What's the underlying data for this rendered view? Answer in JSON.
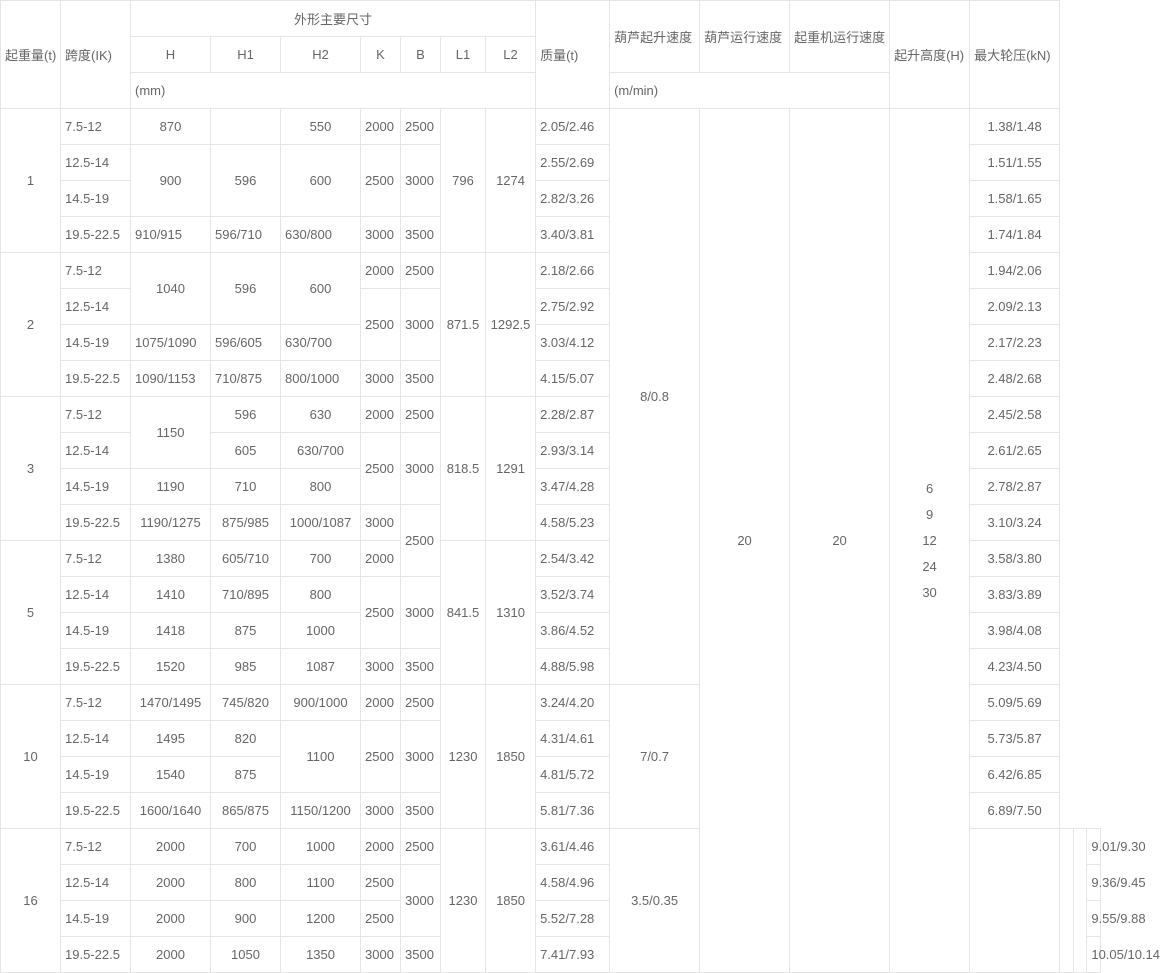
{
  "headers": {
    "capacity": "起重量(t)",
    "span": "跨度(IK)",
    "dims_group": "外形主要尺寸",
    "H": "H",
    "H1": "H1",
    "H2": "H2",
    "K": "K",
    "B": "B",
    "L1": "L1",
    "L2": "L2",
    "mm": "(mm)",
    "mass": "质量(t)",
    "hoist_speed": "葫芦起升速度",
    "trolley_speed": "葫芦运行速度",
    "crane_speed": "起重机运行速度",
    "mmin": "(m/min)",
    "lift_h": "起升高度(H)",
    "wheel_p": "最大轮压(kN)"
  },
  "shared": {
    "hoist_speed_1_5": "8/0.8",
    "hoist_speed_10": "7/0.7",
    "hoist_speed_16": "3.5/0.35",
    "trolley_speed": "20",
    "crane_speed": "20",
    "lift_h_lines": [
      "6",
      "9",
      "12",
      "24",
      "30"
    ]
  },
  "groups": [
    {
      "cap": "1",
      "L1": "796",
      "L2": "1274",
      "rows": [
        {
          "span": "7.5-12",
          "H": "870",
          "H1": "",
          "H2": "550",
          "K": "2000",
          "B": "2500",
          "mass": "2.05/2.46",
          "wp": "1.38/1.48"
        },
        {
          "span": "12.5-14",
          "H": "900",
          "H1": "596",
          "H2": "600",
          "K": "2500",
          "B": "3000",
          "mass": "2.55/2.69",
          "wp": "1.51/1.55"
        },
        {
          "span": "14.5-19",
          "mass": "2.82/3.26",
          "wp": "1.58/1.65"
        },
        {
          "span": "19.5-22.5",
          "H": "910/915",
          "H1": "596/710",
          "H2": "630/800",
          "K": "3000",
          "B": "3500",
          "mass": "3.40/3.81",
          "wp": "1.74/1.84"
        }
      ]
    },
    {
      "cap": "2",
      "L1": "871.5",
      "L2": "1292.5",
      "rows": [
        {
          "span": "7.5-12",
          "H": "1040",
          "H1": "596",
          "H2": "600",
          "K": "2000",
          "B": "2500",
          "mass": "2.18/2.66",
          "wp": "1.94/2.06"
        },
        {
          "span": "12.5-14",
          "K": "2500",
          "B": "3000",
          "mass": "2.75/2.92",
          "wp": "2.09/2.13"
        },
        {
          "span": "14.5-19",
          "H": "1075/1090",
          "H1": "596/605",
          "H2": "630/700",
          "mass": "3.03/4.12",
          "wp": "2.17/2.23"
        },
        {
          "span": "19.5-22.5",
          "H": "1090/1153",
          "H1": "710/875",
          "H2": "800/1000",
          "K": "3000",
          "B": "3500",
          "mass": "4.15/5.07",
          "wp": "2.48/2.68"
        }
      ]
    },
    {
      "cap": "3",
      "L1": "818.5",
      "L2": "1291",
      "rows": [
        {
          "span": "7.5-12",
          "H": "1150",
          "H1": "596",
          "H2": "630",
          "K": "2000",
          "B": "2500",
          "mass": "2.28/2.87",
          "wp": "2.45/2.58"
        },
        {
          "span": "12.5-14",
          "H1": "605",
          "H2": "630/700",
          "K": "2500",
          "B": "3000",
          "mass": "2.93/3.14",
          "wp": "2.61/2.65"
        },
        {
          "span": "14.5-19",
          "H": "1190",
          "H1": "710",
          "H2": "800",
          "mass": "3.47/4.28",
          "wp": "2.78/2.87"
        },
        {
          "span": "19.5-22.5",
          "H": "1190/1275",
          "H1": "875/985",
          "H2": "1000/1087",
          "K": "3000",
          "B": "2500",
          "mass": "4.58/5.23",
          "wp": "3.10/3.24"
        }
      ]
    },
    {
      "cap": "5",
      "L1": "841.5",
      "L2": "1310",
      "rows": [
        {
          "span": "7.5-12",
          "H": "1380",
          "H1": "605/710",
          "H2": "700",
          "K": "2000",
          "mass": "2.54/3.42",
          "wp": "3.58/3.80"
        },
        {
          "span": "12.5-14",
          "H": "1410",
          "H1": "710/895",
          "H2": "800",
          "K": "2500",
          "B": "3000",
          "mass": "3.52/3.74",
          "wp": "3.83/3.89"
        },
        {
          "span": "14.5-19",
          "H": "1418",
          "H1": "875",
          "H2": "1000",
          "mass": "3.86/4.52",
          "wp": "3.98/4.08"
        },
        {
          "span": "19.5-22.5",
          "H": "1520",
          "H1": "985",
          "H2": "1087",
          "K": "3000",
          "B": "3500",
          "mass": "4.88/5.98",
          "wp": "4.23/4.50"
        }
      ]
    },
    {
      "cap": "10",
      "L1": "1230",
      "L2": "1850",
      "rows": [
        {
          "span": "7.5-12",
          "H": "1470/1495",
          "H1": "745/820",
          "H2": "900/1000",
          "K": "2000",
          "B": "2500",
          "mass": "3.24/4.20",
          "wp": "5.09/5.69"
        },
        {
          "span": "12.5-14",
          "H": "1495",
          "H1": "820",
          "H2": "1100",
          "K": "2500",
          "B": "3000",
          "mass": "4.31/4.61",
          "wp": "5.73/5.87"
        },
        {
          "span": "14.5-19",
          "H": "1540",
          "H1": "875",
          "mass": "4.81/5.72",
          "wp": "6.42/6.85"
        },
        {
          "span": "19.5-22.5",
          "H": "1600/1640",
          "H1": "865/875",
          "H2": "1150/1200",
          "K": "3000",
          "B": "3500",
          "mass": "5.81/7.36",
          "wp": "6.89/7.50"
        }
      ]
    },
    {
      "cap": "16",
      "L1": "1230",
      "L2": "1850",
      "rows": [
        {
          "span": "7.5-12",
          "H": "2000",
          "H1": "700",
          "H2": "1000",
          "K": "2000",
          "B": "2500",
          "mass": "3.61/4.46",
          "wp": "9.01/9.30"
        },
        {
          "span": "12.5-14",
          "H": "2000",
          "H1": "800",
          "H2": "1100",
          "K": "2500",
          "B": "3000",
          "mass": "4.58/4.96",
          "wp": "9.36/9.45"
        },
        {
          "span": "14.5-19",
          "H": "2000",
          "H1": "900",
          "H2": "1200",
          "K": "2500",
          "mass": "5.52/7.28",
          "wp": "9.55/9.88"
        },
        {
          "span": "19.5-22.5",
          "H": "2000",
          "H1": "1050",
          "H2": "1350",
          "K": "3000",
          "B": "3500",
          "mass": "7.41/7.93",
          "wp": "10.05/10.14"
        }
      ]
    }
  ]
}
